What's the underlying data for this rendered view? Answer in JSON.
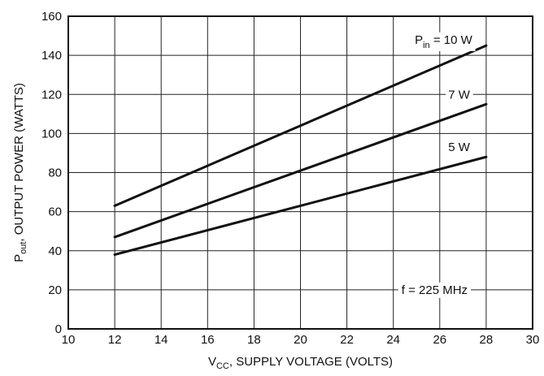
{
  "chart_data": {
    "type": "line",
    "xlabel": {
      "main": "V",
      "sub": "CC",
      "rest": ", SUPPLY VOLTAGE (VOLTS)"
    },
    "ylabel": {
      "main": "P",
      "sub": "out",
      "rest": ", OUTPUT POWER (WATTS)"
    },
    "xlim": [
      10,
      30
    ],
    "ylim": [
      0,
      160
    ],
    "xticks": [
      10,
      12,
      14,
      16,
      18,
      20,
      22,
      24,
      26,
      28,
      30
    ],
    "yticks": [
      0,
      20,
      40,
      60,
      80,
      100,
      120,
      140,
      160
    ],
    "grid": true,
    "series": [
      {
        "name": "10 W",
        "x": [
          12,
          28
        ],
        "y": [
          63,
          145
        ],
        "label_x": 27.4,
        "label_y": 148
      },
      {
        "name": "7 W",
        "x": [
          12,
          28
        ],
        "y": [
          47,
          115
        ],
        "label_x": 27.3,
        "label_y": 120
      },
      {
        "name": "5 W",
        "x": [
          12,
          28
        ],
        "y": [
          38,
          88
        ],
        "label_x": 27.3,
        "label_y": 93
      }
    ],
    "series_label_prefix": {
      "main": "P",
      "sub": "in",
      "rest": " = "
    },
    "annotation": {
      "text": "f = 225 MHz",
      "x": 27.2,
      "y": 20
    }
  }
}
